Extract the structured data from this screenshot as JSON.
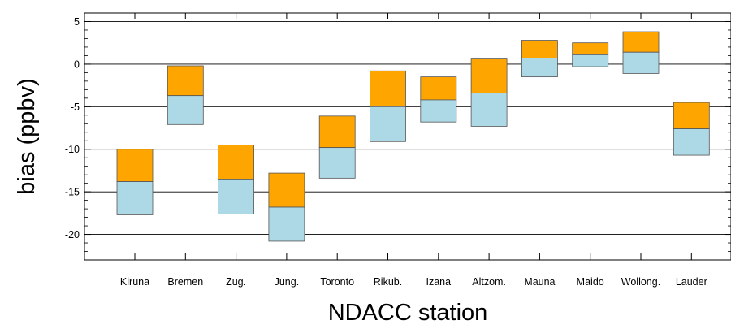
{
  "chart_data": {
    "type": "bar",
    "subtype": "floating-stacked",
    "xlabel": "NDACC station",
    "ylabel": "bias (ppbv)",
    "ylim": [
      -23,
      6
    ],
    "yticks": [
      5,
      0,
      -5,
      -10,
      -15,
      -20
    ],
    "grid": "horizontal at major ticks",
    "categories": [
      "Kiruna",
      "Bremen",
      "Zug.",
      "Jung.",
      "Toronto",
      "Rikub.",
      "Izana",
      "Altzom.",
      "Mauna",
      "Maido",
      "Wollong.",
      "Lauder"
    ],
    "series": [
      {
        "color": "#FFA500",
        "low": [
          -13.8,
          -3.7,
          -13.5,
          -16.8,
          -9.8,
          -5.0,
          -4.2,
          -3.4,
          0.7,
          1.1,
          1.4,
          -7.6
        ],
        "high": [
          -10.0,
          -0.2,
          -9.5,
          -12.8,
          -6.1,
          -0.8,
          -1.5,
          0.6,
          2.8,
          2.5,
          3.8,
          -4.5
        ]
      },
      {
        "color": "#ADD8E6",
        "low": [
          -17.7,
          -7.1,
          -17.6,
          -20.8,
          -13.4,
          -9.1,
          -6.8,
          -7.3,
          -1.5,
          -0.3,
          -1.1,
          -10.7
        ],
        "high": [
          -13.8,
          -3.7,
          -13.5,
          -16.8,
          -9.8,
          -5.0,
          -4.2,
          -3.4,
          0.7,
          1.1,
          1.4,
          -7.6
        ]
      }
    ]
  }
}
